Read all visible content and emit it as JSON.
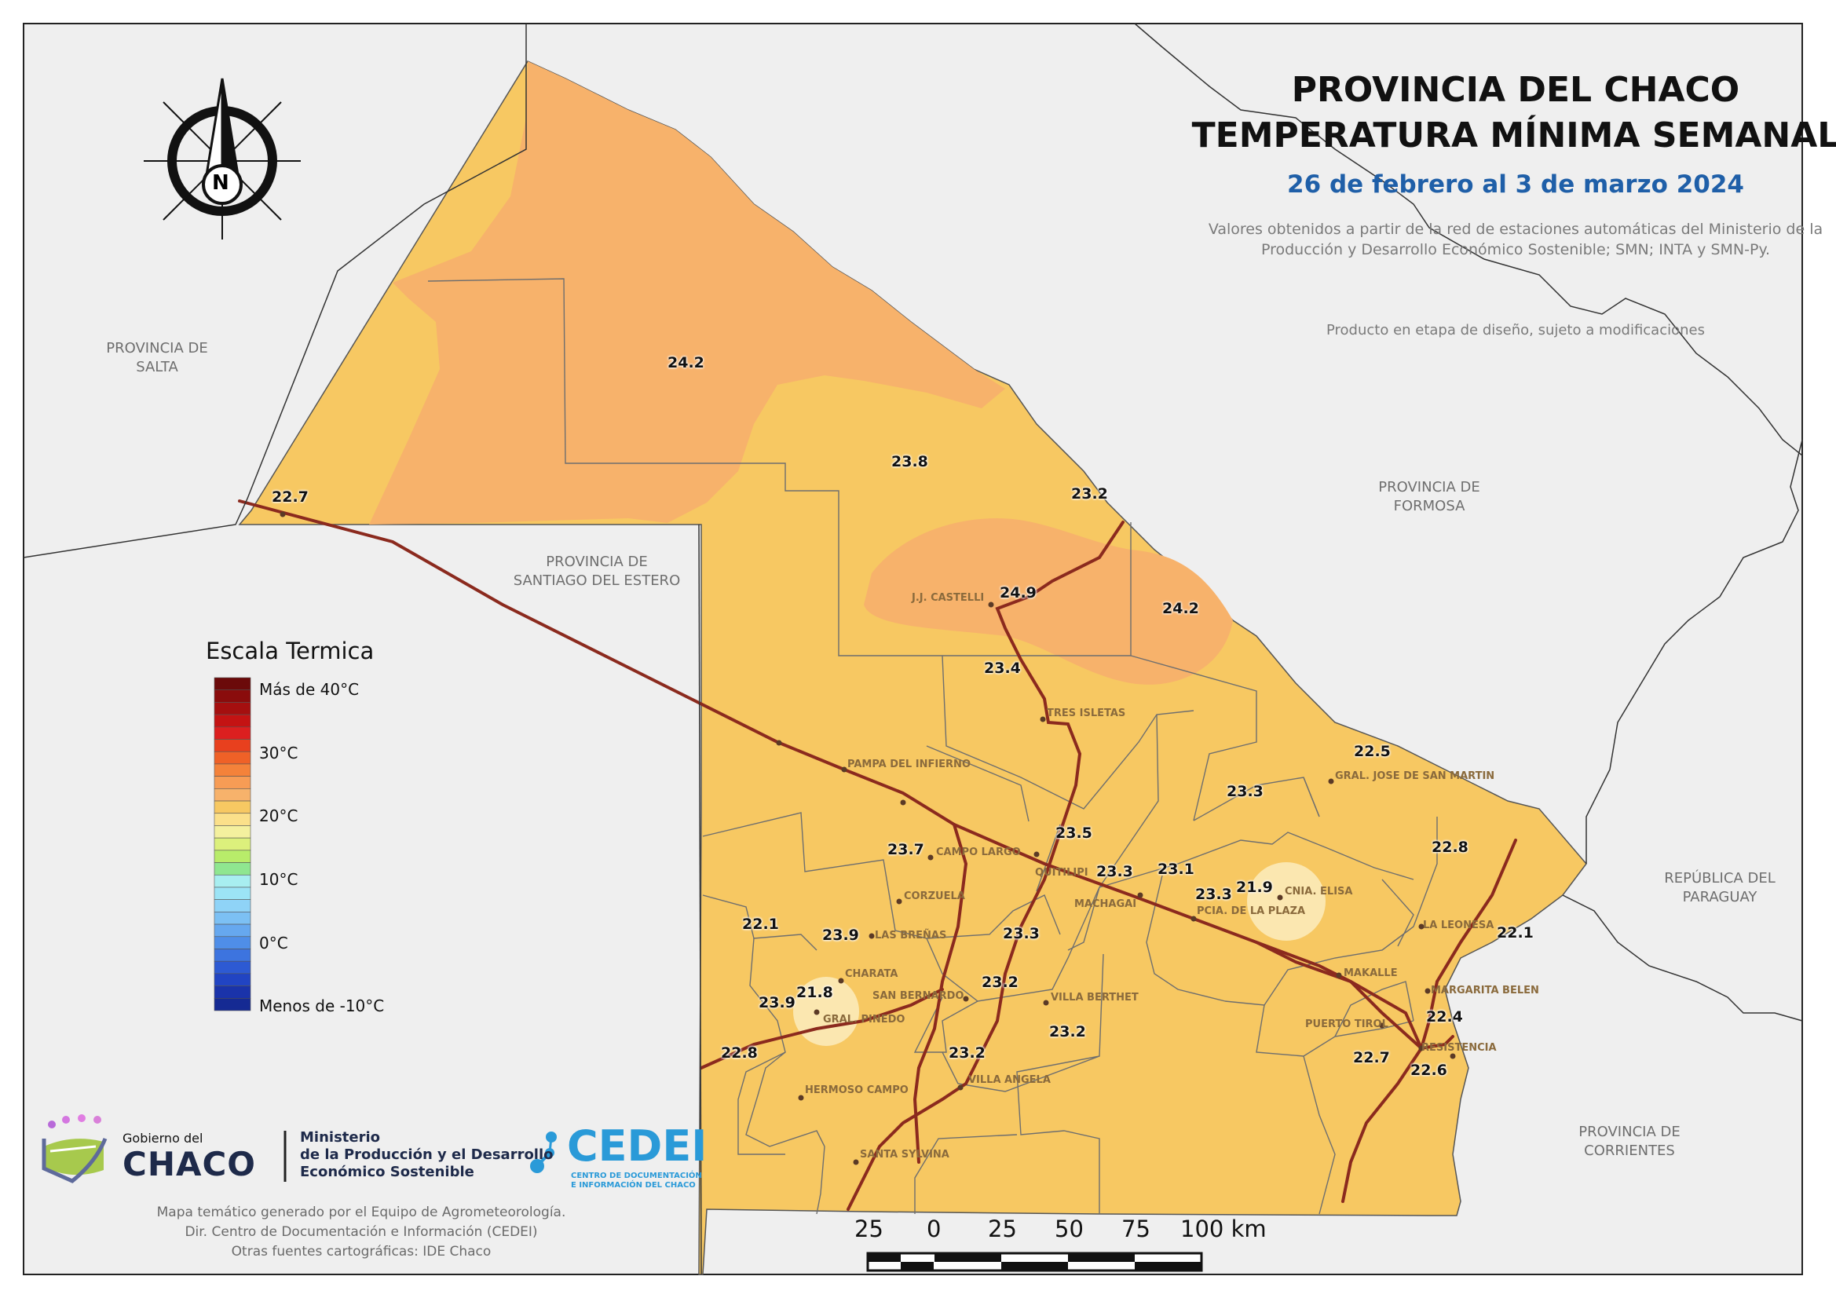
{
  "header": {
    "title_line1": "PROVINCIA DEL CHACO",
    "title_line2": "TEMPERATURA MÍNIMA SEMANAL",
    "date_range": "26 de febrero al 3 de marzo 2024",
    "source_line1": "Valores obtenidos a partir de la red de estaciones automáticas del Ministerio de la",
    "source_line2": "Producción y Desarrollo Económico Sostenible; SMN; INTA y SMN-Py.",
    "disclaimer": "Producto en etapa de diseño, sujeto a modificaciones"
  },
  "compass": {
    "letter": "N"
  },
  "provinces": {
    "salta_1": "PROVINCIA DE",
    "salta_2": "SALTA",
    "formosa_1": "PROVINCIA DE",
    "formosa_2": "FORMOSA",
    "santiago_1": "PROVINCIA DE",
    "santiago_2": "SANTIAGO DEL ESTERO",
    "paraguay_1": "REPÚBLICA DEL",
    "paraguay_2": "PARAGUAY",
    "corrientes_1": "PROVINCIA DE",
    "corrientes_2": "CORRIENTES"
  },
  "colors": {
    "warm_orange": "#f7b26b",
    "yellow_orange": "#f7c862",
    "pale_yellow": "#fbe7b0",
    "route": "#8b2a1e",
    "background": "#efefef"
  },
  "stations": [
    {
      "value": "24.2"
    },
    {
      "value": "22.7"
    },
    {
      "value": "23.8"
    },
    {
      "value": "23.2"
    },
    {
      "value": "24.9"
    },
    {
      "value": "24.2"
    },
    {
      "value": "23.4"
    },
    {
      "value": "22.5"
    },
    {
      "value": "23.3"
    },
    {
      "value": "23.5"
    },
    {
      "value": "23.7"
    },
    {
      "value": "23.3"
    },
    {
      "value": "23.1"
    },
    {
      "value": "23.3"
    },
    {
      "value": "21.9"
    },
    {
      "value": "22.8"
    },
    {
      "value": "22.1"
    },
    {
      "value": "23.9"
    },
    {
      "value": "23.3"
    },
    {
      "value": "22.1"
    },
    {
      "value": "21.8"
    },
    {
      "value": "23.9"
    },
    {
      "value": "23.2"
    },
    {
      "value": "22.4"
    },
    {
      "value": "22.8"
    },
    {
      "value": "23.2"
    },
    {
      "value": "23.2"
    },
    {
      "value": "22.7"
    },
    {
      "value": "22.6"
    }
  ],
  "cities": [
    {
      "name": "J.J. CASTELLI"
    },
    {
      "name": "TRES ISLETAS"
    },
    {
      "name": "PAMPA DEL INFIERNO"
    },
    {
      "name": "GRAL. JOSE DE SAN MARTIN"
    },
    {
      "name": "CAMPO LARGO"
    },
    {
      "name": "QUITILIPI"
    },
    {
      "name": "MACHAGAI"
    },
    {
      "name": "CORZUELA"
    },
    {
      "name": "CNIA. ELISA"
    },
    {
      "name": "PCIA. DE LA PLAZA"
    },
    {
      "name": "LAS BREÑAS"
    },
    {
      "name": "LA LEONESA"
    },
    {
      "name": "CHARATA"
    },
    {
      "name": "MAKALLE"
    },
    {
      "name": "MARGARITA BELEN"
    },
    {
      "name": "SAN BERNARDO"
    },
    {
      "name": "VILLA BERTHET"
    },
    {
      "name": "GRAL. PINEDO"
    },
    {
      "name": "PUERTO TIROL"
    },
    {
      "name": "RESISTENCIA"
    },
    {
      "name": "VILLA ANGELA"
    },
    {
      "name": "HERMOSO CAMPO"
    },
    {
      "name": "SANTA SYLVINA"
    }
  ],
  "legend": {
    "title": "Escala Termica",
    "label_top": "Más de 40°C",
    "label_30": "30°C",
    "label_20": "20°C",
    "label_10": "10°C",
    "label_0": "0°C",
    "label_bottom": "Menos de -10°C",
    "ramp": [
      "#6b0a0a",
      "#8a0c0c",
      "#a50f0f",
      "#c41313",
      "#dc1f1f",
      "#e8401e",
      "#ef6127",
      "#f4823a",
      "#f79c55",
      "#f7b26b",
      "#f7c862",
      "#fbe08a",
      "#f4f09e",
      "#dcf07c",
      "#b8ec6a",
      "#8fe690",
      "#a8eef0",
      "#9ce4f6",
      "#8fd3f7",
      "#7cc0f4",
      "#66a8ef",
      "#4f8ee8",
      "#3d74df",
      "#2d5ad3",
      "#2144c3",
      "#1a33aa",
      "#152a93"
    ]
  },
  "scalebar": {
    "labels": [
      "25",
      "0",
      "25",
      "50",
      "75",
      "100 km"
    ]
  },
  "logos": {
    "gov_small": "Gobierno del",
    "gov_big": "CHACO",
    "ministry_1": "Ministerio",
    "ministry_2": "de la Producción y el Desarrollo",
    "ministry_3": "Económico Sostenible",
    "cedei": "CEDEI",
    "cedei_sub1": "CENTRO DE DOCUMENTACIÓN",
    "cedei_sub2": "E INFORMACIÓN DEL CHACO"
  },
  "credits": {
    "line1": "Mapa temático generado por el Equipo de Agrometeorología.",
    "line2": "Dir. Centro de Documentación e Información (CEDEI)",
    "line3": "Otras fuentes cartográficas: IDE Chaco"
  }
}
